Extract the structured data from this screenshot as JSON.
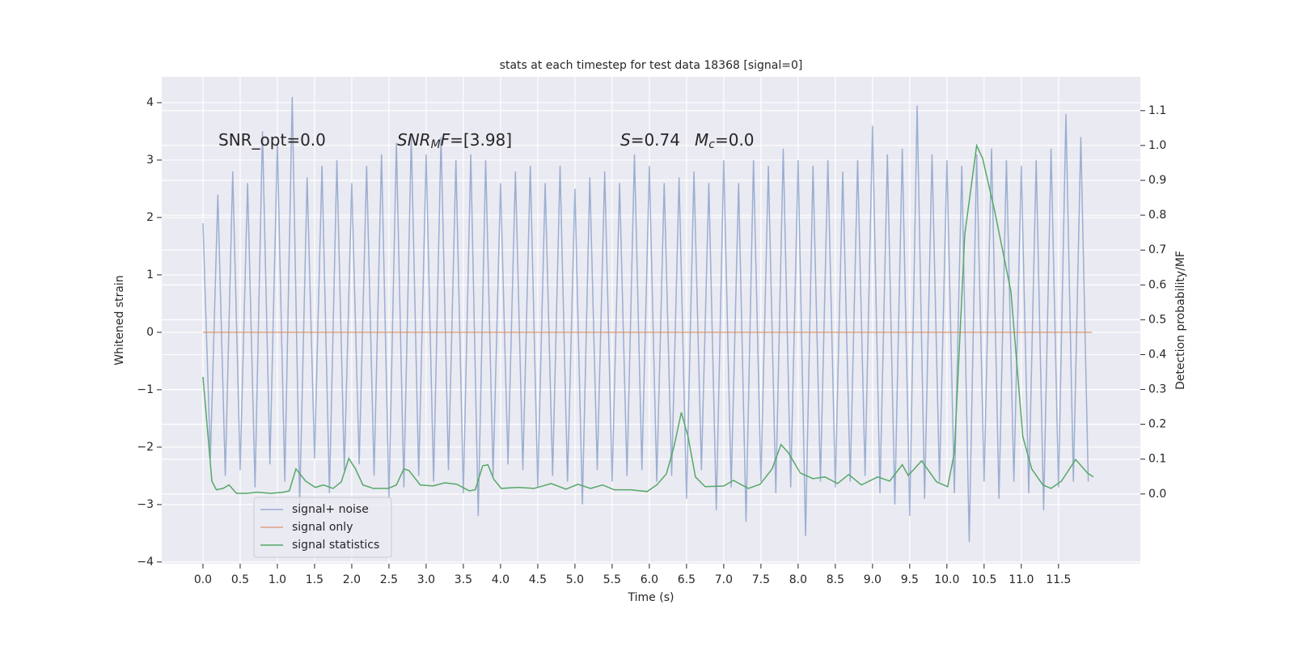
{
  "chart_data": {
    "type": "line",
    "title": "stats at each timestep for test data 18368 [signal=0]",
    "xlabel": "Time (s)",
    "ylabel": "Whitened strain",
    "y2label": "Detection probability/MF",
    "xlim": [
      -0.554,
      12.6
    ],
    "ylim": [
      -4.03,
      4.45
    ],
    "y2lim": [
      -0.2,
      1.197
    ],
    "xticks": [
      {
        "value": 0,
        "label": "0.0"
      },
      {
        "value": 0.5,
        "label": "0.5"
      },
      {
        "value": 1,
        "label": "1.0"
      },
      {
        "value": 1.5,
        "label": "1.5"
      },
      {
        "value": 2,
        "label": "2.0"
      },
      {
        "value": 2.5,
        "label": "2.5"
      },
      {
        "value": 3,
        "label": "3.0"
      },
      {
        "value": 3.5,
        "label": "3.5"
      },
      {
        "value": 4,
        "label": "4.0"
      },
      {
        "value": 4.5,
        "label": "4.5"
      },
      {
        "value": 5,
        "label": "5.0"
      },
      {
        "value": 5.5,
        "label": "5.5"
      },
      {
        "value": 6,
        "label": "6.0"
      },
      {
        "value": 6.5,
        "label": "6.5"
      },
      {
        "value": 7,
        "label": "7.0"
      },
      {
        "value": 7.5,
        "label": "7.5"
      },
      {
        "value": 8,
        "label": "8.0"
      },
      {
        "value": 8.5,
        "label": "8.5"
      },
      {
        "value": 9,
        "label": "9.0"
      },
      {
        "value": 9.5,
        "label": "9.5"
      },
      {
        "value": 10,
        "label": "10.0"
      },
      {
        "value": 10.5,
        "label": "10.5"
      },
      {
        "value": 11,
        "label": "11.0"
      },
      {
        "value": 11.5,
        "label": "11.5"
      }
    ],
    "yticks": [
      {
        "value": -4,
        "label": "−4"
      },
      {
        "value": -3,
        "label": "−3"
      },
      {
        "value": -2,
        "label": "−2"
      },
      {
        "value": -1,
        "label": "−1"
      },
      0,
      1,
      2,
      3,
      4
    ],
    "y2ticks": [
      {
        "value": 0,
        "label": "0.0"
      },
      {
        "value": 0.1,
        "label": "0.1"
      },
      {
        "value": 0.2,
        "label": "0.2"
      },
      {
        "value": 0.3,
        "label": "0.3"
      },
      {
        "value": 0.4,
        "label": "0.4"
      },
      {
        "value": 0.5,
        "label": "0.5"
      },
      {
        "value": 0.6,
        "label": "0.6"
      },
      {
        "value": 0.7,
        "label": "0.7"
      },
      {
        "value": 0.8,
        "label": "0.8"
      },
      {
        "value": 0.9,
        "label": "0.9"
      },
      {
        "value": 1.0,
        "label": "1.0"
      },
      {
        "value": 1.1,
        "label": "1.1"
      }
    ],
    "grid": true,
    "legend_position": "lower left",
    "annotations": [
      {
        "parts": [
          "SNR_opt=0.0"
        ],
        "styles": [
          "normal"
        ]
      },
      {
        "parts": [
          "SNR",
          "M",
          "F",
          "=[3.98]"
        ],
        "styles": [
          "italic",
          "italic-sub",
          "italic",
          "normal"
        ]
      },
      {
        "parts": [
          "S",
          "=0.74"
        ],
        "styles": [
          "italic",
          "normal"
        ]
      },
      {
        "parts": [
          "M",
          "c",
          "=0.0"
        ],
        "styles": [
          "italic",
          "italic-sub",
          "normal"
        ]
      }
    ],
    "series": [
      {
        "name": "signal+ noise",
        "color": "#4c72b0",
        "opacity": 0.5,
        "x": [
          0,
          0.1,
          0.2,
          0.3,
          0.4,
          0.5,
          0.6,
          0.7,
          0.8,
          0.9,
          1,
          1.1,
          1.2,
          1.3,
          1.4,
          1.5,
          1.6,
          1.7,
          1.8,
          1.9,
          2,
          2.1,
          2.2,
          2.3,
          2.4,
          2.5,
          2.6,
          2.7,
          2.8,
          2.9,
          3,
          3.1,
          3.2,
          3.3,
          3.4,
          3.5,
          3.6,
          3.7,
          3.8,
          3.9,
          4,
          4.1,
          4.2,
          4.3,
          4.4,
          4.5,
          4.6,
          4.7,
          4.8,
          4.9,
          5,
          5.1,
          5.2,
          5.3,
          5.4,
          5.5,
          5.6,
          5.7,
          5.8,
          5.9,
          6,
          6.1,
          6.2,
          6.3,
          6.4,
          6.5,
          6.6,
          6.7,
          6.8,
          6.9,
          7,
          7.1,
          7.2,
          7.3,
          7.4,
          7.5,
          7.6,
          7.7,
          7.8,
          7.9,
          8,
          8.1,
          8.2,
          8.3,
          8.4,
          8.5,
          8.6,
          8.7,
          8.8,
          8.9,
          9,
          9.1,
          9.2,
          9.3,
          9.4,
          9.5,
          9.6,
          9.7,
          9.8,
          9.9,
          10,
          10.1,
          10.2,
          10.3,
          10.4,
          10.5,
          10.6,
          10.7,
          10.8,
          10.9,
          11,
          11.1,
          11.2,
          11.3,
          11.4,
          11.5,
          11.6,
          11.7,
          11.8,
          11.9
        ],
        "values": [
          1.9,
          -2.2,
          2.4,
          -2.5,
          2.8,
          -2.4,
          2.6,
          -2.7,
          3.5,
          -2.3,
          3.3,
          -2.6,
          4.1,
          -3.0,
          2.7,
          -2.2,
          2.9,
          -2.8,
          3.0,
          -2.4,
          2.6,
          -2.3,
          2.9,
          -2.5,
          3.1,
          -2.9,
          3.3,
          -2.7,
          3.4,
          -2.5,
          3.1,
          -2.6,
          3.4,
          -2.4,
          3.0,
          -2.8,
          3.1,
          -3.2,
          3.0,
          -2.5,
          2.6,
          -2.3,
          2.8,
          -2.4,
          2.9,
          -2.7,
          2.6,
          -2.5,
          2.9,
          -2.6,
          2.5,
          -3.0,
          2.7,
          -2.4,
          2.8,
          -2.6,
          2.6,
          -2.5,
          3.1,
          -2.4,
          2.9,
          -2.6,
          2.6,
          -2.5,
          2.7,
          -2.9,
          2.8,
          -2.4,
          2.6,
          -3.1,
          3.0,
          -2.7,
          2.6,
          -3.3,
          3.0,
          -2.6,
          2.9,
          -2.8,
          3.2,
          -2.7,
          3.0,
          -3.55,
          2.9,
          -2.6,
          3.0,
          -2.7,
          2.8,
          -2.6,
          3.0,
          -2.5,
          3.6,
          -2.8,
          3.1,
          -3.0,
          3.2,
          -3.2,
          3.95,
          -2.9,
          3.1,
          -2.6,
          3.0,
          -2.8,
          2.9,
          -3.65,
          3.1,
          -2.6,
          3.2,
          -2.9,
          3.0,
          -2.6,
          2.9,
          -2.8,
          3.0,
          -3.1,
          3.2,
          -2.7,
          3.8,
          -2.6,
          3.4,
          -2.6
        ]
      },
      {
        "name": "signal only",
        "color": "#dd8452",
        "opacity": 0.7,
        "x": [
          0,
          11.95
        ],
        "values": [
          0,
          0
        ]
      },
      {
        "name": "signal statistics",
        "color": "#55a868",
        "opacity": 1,
        "axis": "y2",
        "x": [
          0,
          0.12,
          0.18,
          0.27,
          0.35,
          0.45,
          0.59,
          0.73,
          0.91,
          1.08,
          1.16,
          1.25,
          1.38,
          1.51,
          1.62,
          1.75,
          1.86,
          1.96,
          2.05,
          2.15,
          2.29,
          2.49,
          2.6,
          2.7,
          2.77,
          2.92,
          3.09,
          3.25,
          3.41,
          3.58,
          3.66,
          3.76,
          3.83,
          3.91,
          4.01,
          4.23,
          4.45,
          4.68,
          4.88,
          5.04,
          5.21,
          5.37,
          5.53,
          5.75,
          5.97,
          6.1,
          6.23,
          6.33,
          6.43,
          6.52,
          6.62,
          6.75,
          7.0,
          7.13,
          7.33,
          7.49,
          7.65,
          7.77,
          7.87,
          8.03,
          8.2,
          8.36,
          8.53,
          8.68,
          8.85,
          9.07,
          9.23,
          9.4,
          9.48,
          9.66,
          9.86,
          10.01,
          10.1,
          10.24,
          10.4,
          10.48,
          10.64,
          10.86,
          11.02,
          11.14,
          11.29,
          11.4,
          11.54,
          11.73,
          11.89,
          11.97
        ],
        "values": [
          0.336,
          0.037,
          0.012,
          0.016,
          0.026,
          0.002,
          0.002,
          0.005,
          0.002,
          0.005,
          0.009,
          0.072,
          0.037,
          0.019,
          0.026,
          0.016,
          0.035,
          0.102,
          0.072,
          0.026,
          0.016,
          0.016,
          0.026,
          0.072,
          0.067,
          0.026,
          0.023,
          0.032,
          0.028,
          0.009,
          0.012,
          0.081,
          0.084,
          0.042,
          0.016,
          0.019,
          0.016,
          0.03,
          0.014,
          0.028,
          0.016,
          0.026,
          0.012,
          0.012,
          0.007,
          0.026,
          0.058,
          0.135,
          0.234,
          0.165,
          0.049,
          0.021,
          0.023,
          0.039,
          0.016,
          0.028,
          0.072,
          0.142,
          0.118,
          0.06,
          0.044,
          0.049,
          0.03,
          0.056,
          0.026,
          0.049,
          0.037,
          0.084,
          0.053,
          0.095,
          0.035,
          0.021,
          0.118,
          0.745,
          1.0,
          0.963,
          0.814,
          0.582,
          0.165,
          0.072,
          0.026,
          0.016,
          0.037,
          0.099,
          0.06,
          0.049
        ]
      }
    ]
  }
}
